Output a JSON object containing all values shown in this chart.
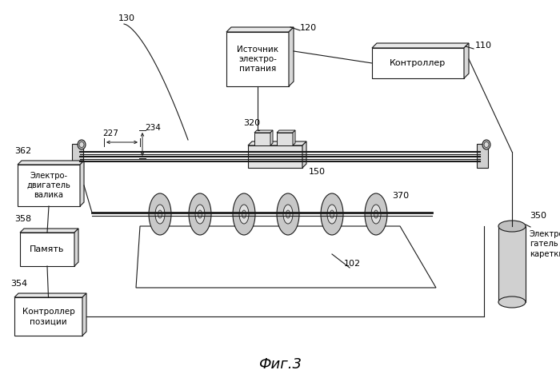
{
  "title": "Фиг.3",
  "background": "#ffffff",
  "line_color": "#1a1a1a",
  "labels": {
    "power_source": "Источник\nэлектро-\nпитания",
    "controller": "Контроллер",
    "roller_motor": "Электро-\nдвигатель\nвалика",
    "memory": "Память",
    "pos_controller": "Контроллер\nпозиции",
    "carriage_motor": "Электродви-\nгатель\nкаретки"
  },
  "refs": {
    "n130": "130",
    "n120": "120",
    "n110": "110",
    "n320": "320",
    "n150": "150",
    "n362": "362",
    "n370": "370",
    "n102": "102",
    "n350": "350",
    "n358": "358",
    "n354": "354",
    "n227": "227",
    "n234": "234"
  }
}
